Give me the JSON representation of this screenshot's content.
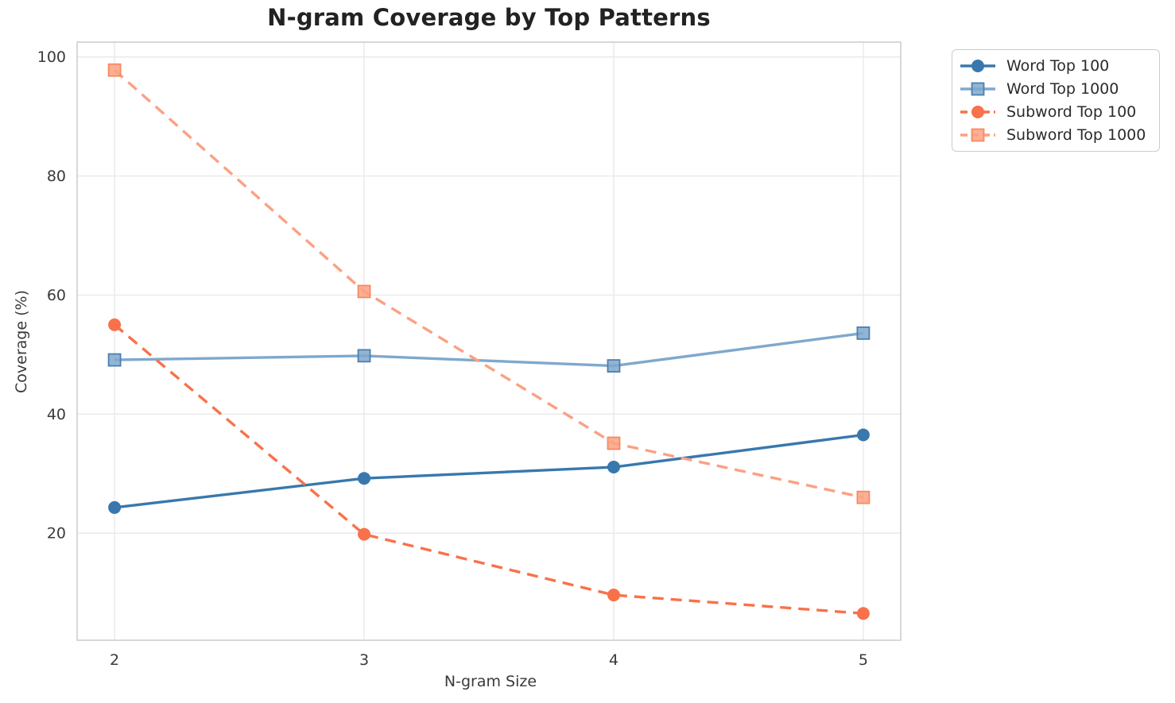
{
  "chart_data": {
    "type": "line",
    "title": "N-gram Coverage by Top Patterns",
    "xlabel": "N-gram Size",
    "ylabel": "Coverage (%)",
    "categories": [
      2,
      3,
      4,
      5
    ],
    "xticks": [
      "2",
      "3",
      "4",
      "5"
    ],
    "yticks": [
      20,
      40,
      60,
      80,
      100
    ],
    "xlim": [
      1.85,
      5.15
    ],
    "ylim": [
      2,
      102.5
    ],
    "grid": true,
    "legend_position": "outside-top-right",
    "background_color": "#ffffff",
    "grid_color": "#e9e9e9",
    "spine_color": "#cccccc",
    "text_color": "#3a3a3a",
    "title_color": "#222222",
    "series": [
      {
        "name": "Word Top 100",
        "values": [
          24.3,
          29.2,
          31.1,
          36.5
        ],
        "color": "#3878ad",
        "marker_edge": "#3878ad",
        "marker": "circle",
        "line_style": "solid"
      },
      {
        "name": "Word Top 1000",
        "values": [
          49.1,
          49.8,
          48.1,
          53.6
        ],
        "color": "#7fa8cd",
        "marker_edge": "#4c7fb0",
        "marker": "square",
        "line_style": "solid"
      },
      {
        "name": "Subword Top 100",
        "values": [
          55.0,
          19.8,
          9.6,
          6.5
        ],
        "color": "#f9714a",
        "marker_edge": "#f9714a",
        "marker": "circle",
        "line_style": "dashed"
      },
      {
        "name": "Subword Top 1000",
        "values": [
          97.8,
          60.6,
          35.1,
          26.0
        ],
        "color": "#fba183",
        "marker_edge": "#f88a63",
        "marker": "square",
        "line_style": "dashed"
      }
    ]
  }
}
